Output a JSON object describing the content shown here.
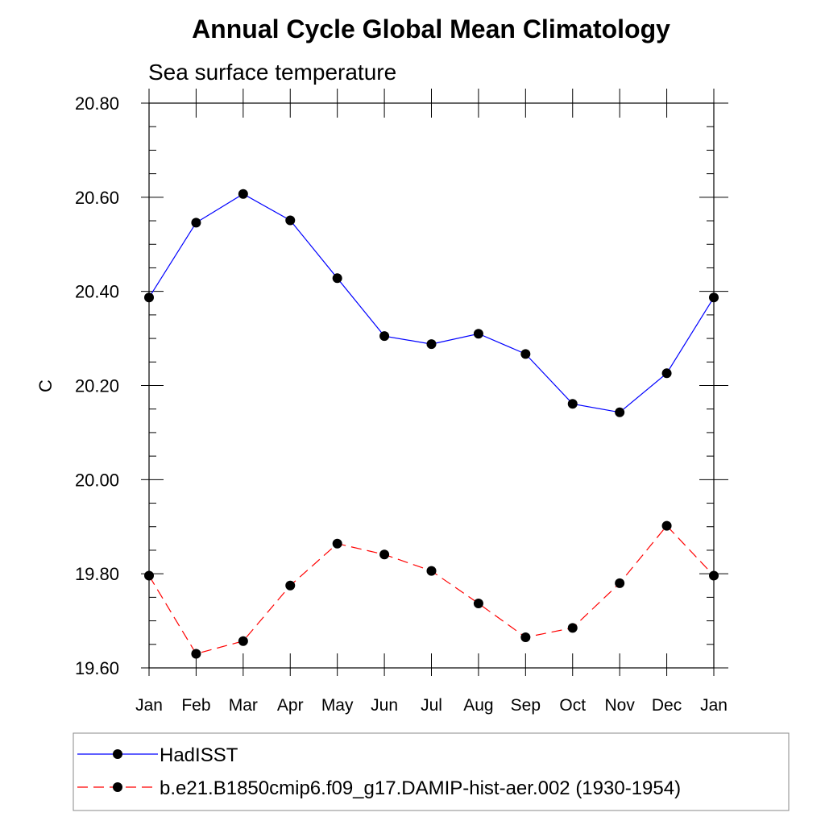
{
  "chart_data": {
    "type": "line",
    "title": "Annual Cycle Global Mean Climatology",
    "subtitle": "Sea surface temperature",
    "ylabel": "C",
    "xlabel": "",
    "categories": [
      "Jan",
      "Feb",
      "Mar",
      "Apr",
      "May",
      "Jun",
      "Jul",
      "Aug",
      "Sep",
      "Oct",
      "Nov",
      "Dec",
      "Jan"
    ],
    "ylim": [
      19.6,
      20.8
    ],
    "yticks": [
      "20.80",
      "20.60",
      "20.40",
      "20.20",
      "20.00",
      "19.80",
      "19.60"
    ],
    "series": [
      {
        "name": "HadISST",
        "color": "#0000ff",
        "dash": "solid",
        "values": [
          20.387,
          20.546,
          20.607,
          20.551,
          20.428,
          20.305,
          20.288,
          20.31,
          20.267,
          20.161,
          20.143,
          20.226,
          20.387
        ]
      },
      {
        "name": "b.e21.B1850cmip6.f09_g17.DAMIP-hist-aer.002 (1930-1954)",
        "color": "#ff0000",
        "dash": "dashed",
        "values": [
          19.796,
          19.63,
          19.657,
          19.775,
          19.864,
          19.841,
          19.806,
          19.737,
          19.665,
          19.685,
          19.78,
          19.902,
          19.796
        ]
      }
    ],
    "legend_position": "bottom",
    "grid": false
  }
}
